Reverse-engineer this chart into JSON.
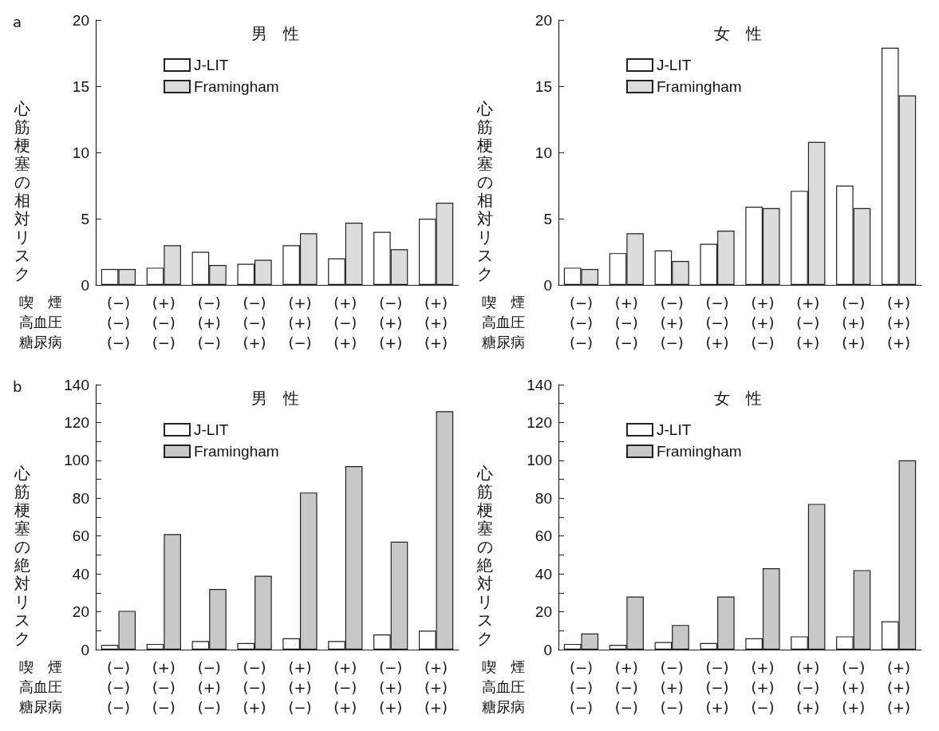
{
  "chart_data": [
    {
      "type": "bar",
      "title": "男　性",
      "annotations": [
        "喫　煙",
        "高血圧",
        "糖尿病",
        "a"
      ],
      "ylabel": "心筋梗塞の相対リスク",
      "categories": [
        "(−)\n(−)\n(−)",
        "(+)\n(−)\n(−)",
        "(−)\n(+)\n(−)",
        "(−)\n(−)\n(+)",
        "(+)\n(+)\n(−)",
        "(+)\n(−)\n(+)",
        "(−)\n(+)\n(+)",
        "(+)\n(+)\n(+)"
      ],
      "series": [
        {
          "name": "J-LIT",
          "color": "#ffffff",
          "values": [
            1.2,
            1.3,
            2.5,
            1.6,
            3.0,
            2.0,
            4.0,
            5.0
          ]
        },
        {
          "name": "Framingham",
          "color": "#dcdcdc",
          "values": [
            1.2,
            3.0,
            1.5,
            1.9,
            3.9,
            4.7,
            2.7,
            6.2
          ]
        }
      ],
      "ylim": [
        0,
        20
      ],
      "yticks": [
        0,
        5,
        10,
        15,
        20
      ],
      "grid": false,
      "legend": "top left"
    },
    {
      "type": "bar",
      "title": "女　性",
      "annotations": [
        "喫　煙",
        "高血圧",
        "糖尿病"
      ],
      "ylabel": "心筋梗塞の相対リスク",
      "categories": [
        "(−)\n(−)\n(−)",
        "(+)\n(−)\n(−)",
        "(−)\n(+)\n(−)",
        "(−)\n(−)\n(+)",
        "(+)\n(+)\n(−)",
        "(+)\n(−)\n(+)",
        "(−)\n(+)\n(+)",
        "(+)\n(+)\n(+)"
      ],
      "series": [
        {
          "name": "J-LIT",
          "color": "#ffffff",
          "values": [
            1.3,
            2.4,
            2.6,
            3.1,
            5.9,
            7.1,
            7.5,
            17.9
          ]
        },
        {
          "name": "Framingham",
          "color": "#dcdcdc",
          "values": [
            1.2,
            3.9,
            1.8,
            4.1,
            5.8,
            10.8,
            5.8,
            14.3
          ]
        }
      ],
      "ylim": [
        0,
        20
      ],
      "yticks": [
        0,
        5,
        10,
        15,
        20
      ],
      "grid": false,
      "legend": "top left"
    },
    {
      "type": "bar",
      "title": "男　性",
      "annotations": [
        "喫　煙",
        "高血圧",
        "糖尿病",
        "b"
      ],
      "ylabel": "心筋梗塞の絶対リスク",
      "categories": [
        "(−)\n(−)\n(−)",
        "(+)\n(−)\n(−)",
        "(−)\n(+)\n(−)",
        "(−)\n(−)\n(+)",
        "(+)\n(+)\n(−)",
        "(+)\n(−)\n(+)",
        "(−)\n(+)\n(+)",
        "(+)\n(+)\n(+)"
      ],
      "series": [
        {
          "name": "J-LIT",
          "color": "#ffffff",
          "values": [
            2.5,
            3,
            4.5,
            3.5,
            6,
            4.5,
            8,
            10
          ]
        },
        {
          "name": "Framingham",
          "color": "#c8c8c8",
          "values": [
            20.5,
            61,
            32,
            39,
            83,
            97,
            57,
            126
          ]
        }
      ],
      "ylim": [
        0,
        140
      ],
      "yticks": [
        0,
        {
          "value": 10,
          "label": null
        },
        20,
        {
          "value": 30,
          "label": null
        },
        40,
        {
          "value": 50,
          "label": null
        },
        60,
        {
          "value": 70,
          "label": null
        },
        80,
        {
          "value": 90,
          "label": null
        },
        100,
        {
          "value": 110,
          "label": null
        },
        120,
        {
          "value": 130,
          "label": null
        },
        140
      ],
      "grid": false,
      "legend": "top left"
    },
    {
      "type": "bar",
      "title": "女　性",
      "annotations": [
        "喫　煙",
        "高血圧",
        "糖尿病"
      ],
      "ylabel": "心筋梗塞の絶対リスク",
      "categories": [
        "(−)\n(−)\n(−)",
        "(+)\n(−)\n(−)",
        "(−)\n(+)\n(−)",
        "(−)\n(−)\n(+)",
        "(+)\n(+)\n(−)",
        "(+)\n(−)\n(+)",
        "(−)\n(+)\n(+)",
        "(+)\n(+)\n(+)"
      ],
      "series": [
        {
          "name": "J-LIT",
          "color": "#ffffff",
          "values": [
            3,
            2.5,
            4,
            3.5,
            6,
            7,
            7,
            15
          ]
        },
        {
          "name": "Framingham",
          "color": "#c8c8c8",
          "values": [
            8.5,
            28,
            13,
            28,
            43,
            77,
            42,
            100
          ]
        }
      ],
      "ylim": [
        0,
        140
      ],
      "yticks": [
        0,
        {
          "value": 10,
          "label": null
        },
        20,
        {
          "value": 30,
          "label": null
        },
        40,
        {
          "value": 50,
          "label": null
        },
        60,
        {
          "value": 70,
          "label": null
        },
        80,
        {
          "value": 90,
          "label": null
        },
        100,
        {
          "value": 110,
          "label": null
        },
        120,
        {
          "value": 130,
          "label": null
        },
        140
      ],
      "grid": false,
      "legend": "top left"
    }
  ]
}
